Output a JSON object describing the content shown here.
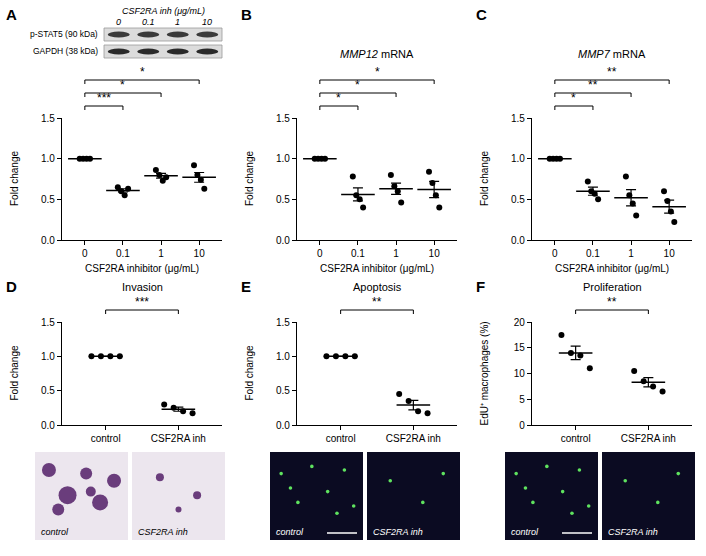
{
  "chart_data": [
    {
      "panel": "A",
      "type": "scatter",
      "marker": "circle",
      "color": "#000000",
      "blot": {
        "header": "CSF2RA inh (μg/mL)",
        "lanes": [
          "0",
          "0.1",
          "1",
          "10"
        ],
        "rows": [
          "p-STAT5 (90 kDa)",
          "GAPDH (38 kDa)"
        ]
      },
      "x_label": "CSF2RA inhibitor (μg/mL)",
      "y_label": "Fold change",
      "categories": [
        "0",
        "0.1",
        "1",
        "10"
      ],
      "points": [
        [
          1,
          1,
          1,
          1
        ],
        [
          0.65,
          0.6,
          0.55,
          0.63
        ],
        [
          0.86,
          0.8,
          0.73,
          0.77
        ],
        [
          0.92,
          0.8,
          0.74,
          0.63
        ]
      ],
      "mean": [
        1,
        0.61,
        0.79,
        0.77
      ],
      "sem": [
        0,
        0.02,
        0.03,
        0.06
      ],
      "ylim": [
        0,
        1.5
      ],
      "yticks": [
        {
          "value": 0,
          "label": "0.0"
        },
        0.5,
        {
          "value": 1,
          "label": "1.0"
        },
        1.5
      ],
      "grid": false,
      "comparisons": [
        {
          "groups": [
            "0",
            "0.1"
          ],
          "label": "***"
        },
        {
          "groups": [
            "0",
            "1"
          ],
          "label": "*"
        },
        {
          "groups": [
            "0",
            "10"
          ],
          "label": "*"
        }
      ]
    },
    {
      "panel": "B",
      "type": "scatter",
      "marker": "circle",
      "color": "#000000",
      "title": "MMP12 mRNA",
      "x_label": "CSF2RA inhibitor (μg/mL)",
      "y_label": "Fold change",
      "categories": [
        "0",
        "0.1",
        "1",
        "10"
      ],
      "points": [
        [
          1,
          1,
          1,
          1
        ],
        [
          0.78,
          0.55,
          0.5,
          0.4
        ],
        [
          0.8,
          0.66,
          0.6,
          0.46
        ],
        [
          0.84,
          0.7,
          0.55,
          0.4
        ]
      ],
      "mean": [
        1,
        0.56,
        0.63,
        0.62
      ],
      "sem": [
        0,
        0.08,
        0.07,
        0.1
      ],
      "ylim": [
        0,
        1.5
      ],
      "yticks": [
        {
          "value": 0,
          "label": "0.0"
        },
        0.5,
        {
          "value": 1,
          "label": "1.0"
        },
        1.5
      ],
      "grid": false,
      "comparisons": [
        {
          "groups": [
            "0",
            "0.1"
          ],
          "label": "*"
        },
        {
          "groups": [
            "0",
            "1"
          ],
          "label": "*"
        },
        {
          "groups": [
            "0",
            "10"
          ],
          "label": "*"
        }
      ]
    },
    {
      "panel": "C",
      "type": "scatter",
      "marker": "circle",
      "color": "#000000",
      "title": "MMP7 mRNA",
      "x_label": "CSF2RA inhibitor (μg/mL)",
      "y_label": "Fold change",
      "categories": [
        "0",
        "0.1",
        "1",
        "10"
      ],
      "points": [
        [
          1,
          1,
          1,
          1
        ],
        [
          0.72,
          0.6,
          0.57,
          0.5
        ],
        [
          0.78,
          0.55,
          0.45,
          0.3
        ],
        [
          0.6,
          0.48,
          0.35,
          0.22
        ]
      ],
      "mean": [
        1,
        0.6,
        0.52,
        0.41
      ],
      "sem": [
        0,
        0.05,
        0.1,
        0.08
      ],
      "ylim": [
        0,
        1.5
      ],
      "yticks": [
        {
          "value": 0,
          "label": "0.0"
        },
        0.5,
        {
          "value": 1,
          "label": "1.0"
        },
        1.5
      ],
      "grid": false,
      "comparisons": [
        {
          "groups": [
            "0",
            "0.1"
          ],
          "label": "*"
        },
        {
          "groups": [
            "0",
            "1"
          ],
          "label": "**"
        },
        {
          "groups": [
            "0",
            "10"
          ],
          "label": "**"
        }
      ]
    },
    {
      "panel": "D",
      "type": "scatter",
      "marker": "circle",
      "color": "#000000",
      "title": "Invasion",
      "y_label": "Fold change",
      "categories": [
        "control",
        "CSF2RA inh"
      ],
      "points": [
        [
          1,
          1,
          1,
          1
        ],
        [
          0.3,
          0.25,
          0.2,
          0.17
        ]
      ],
      "mean": [
        1,
        0.23
      ],
      "sem": [
        0,
        0.03
      ],
      "ylim": [
        0,
        1.5
      ],
      "yticks": [
        {
          "value": 0,
          "label": "0.0"
        },
        0.5,
        {
          "value": 1,
          "label": "1.0"
        },
        1.5
      ],
      "grid": false,
      "comparisons": [
        {
          "groups": [
            "control",
            "CSF2RA inh"
          ],
          "label": "***"
        }
      ],
      "images": [
        "control",
        "CSF2RA inh"
      ]
    },
    {
      "panel": "E",
      "type": "scatter",
      "marker": "circle",
      "color": "#000000",
      "title": "Apoptosis",
      "y_label": "Fold change",
      "categories": [
        "control",
        "CSF2RA inh"
      ],
      "points": [
        [
          1,
          1,
          1,
          1
        ],
        [
          0.45,
          0.35,
          0.2,
          0.17
        ]
      ],
      "mean": [
        1,
        0.29
      ],
      "sem": [
        0,
        0.07
      ],
      "ylim": [
        0,
        1.5
      ],
      "yticks": [
        {
          "value": 0,
          "label": "0.0"
        },
        0.5,
        {
          "value": 1,
          "label": "1.0"
        },
        1.5
      ],
      "grid": false,
      "comparisons": [
        {
          "groups": [
            "control",
            "CSF2RA inh"
          ],
          "label": "**"
        }
      ],
      "images": [
        "control",
        "CSF2RA inh"
      ]
    },
    {
      "panel": "F",
      "type": "scatter",
      "marker": "circle",
      "color": "#000000",
      "title": "Proliferation",
      "y_label": "EdU⁺ macrophages (%)",
      "categories": [
        "control",
        "CSF2RA inh"
      ],
      "points": [
        [
          17.5,
          14,
          13.5,
          11
        ],
        [
          10.5,
          8.5,
          7.5,
          6.5
        ]
      ],
      "mean": [
        14,
        8.3
      ],
      "sem": [
        1.3,
        0.9
      ],
      "ylim": [
        0,
        20
      ],
      "yticks": [
        0,
        5,
        10,
        15,
        20
      ],
      "grid": false,
      "comparisons": [
        {
          "groups": [
            "control",
            "CSF2RA inh"
          ],
          "label": "**"
        }
      ],
      "images": [
        "control",
        "CSF2RA inh"
      ]
    }
  ]
}
